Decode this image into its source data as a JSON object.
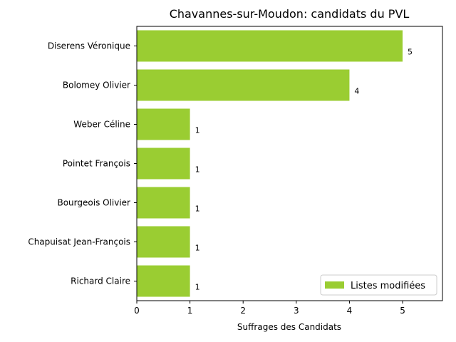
{
  "chart_data": {
    "type": "bar",
    "orientation": "horizontal",
    "title": "Chavannes-sur-Moudon: candidats du PVL",
    "xlabel": "Suffrages des Candidats",
    "ylabel": "",
    "xlim": [
      0,
      5.75
    ],
    "xticks": [
      0,
      1,
      2,
      3,
      4,
      5
    ],
    "categories": [
      "Diserens Véronique",
      "Bolomey Olivier",
      "Weber Céline",
      "Pointet François",
      "Bourgeois Olivier",
      "Chapuisat Jean-François",
      "Richard Claire"
    ],
    "series": [
      {
        "name": "Listes modifiées",
        "values": [
          5,
          4,
          1,
          1,
          1,
          1,
          1
        ],
        "color": "#9acd32"
      }
    ],
    "data_labels": true,
    "grid": false,
    "legend": "lower-right"
  }
}
